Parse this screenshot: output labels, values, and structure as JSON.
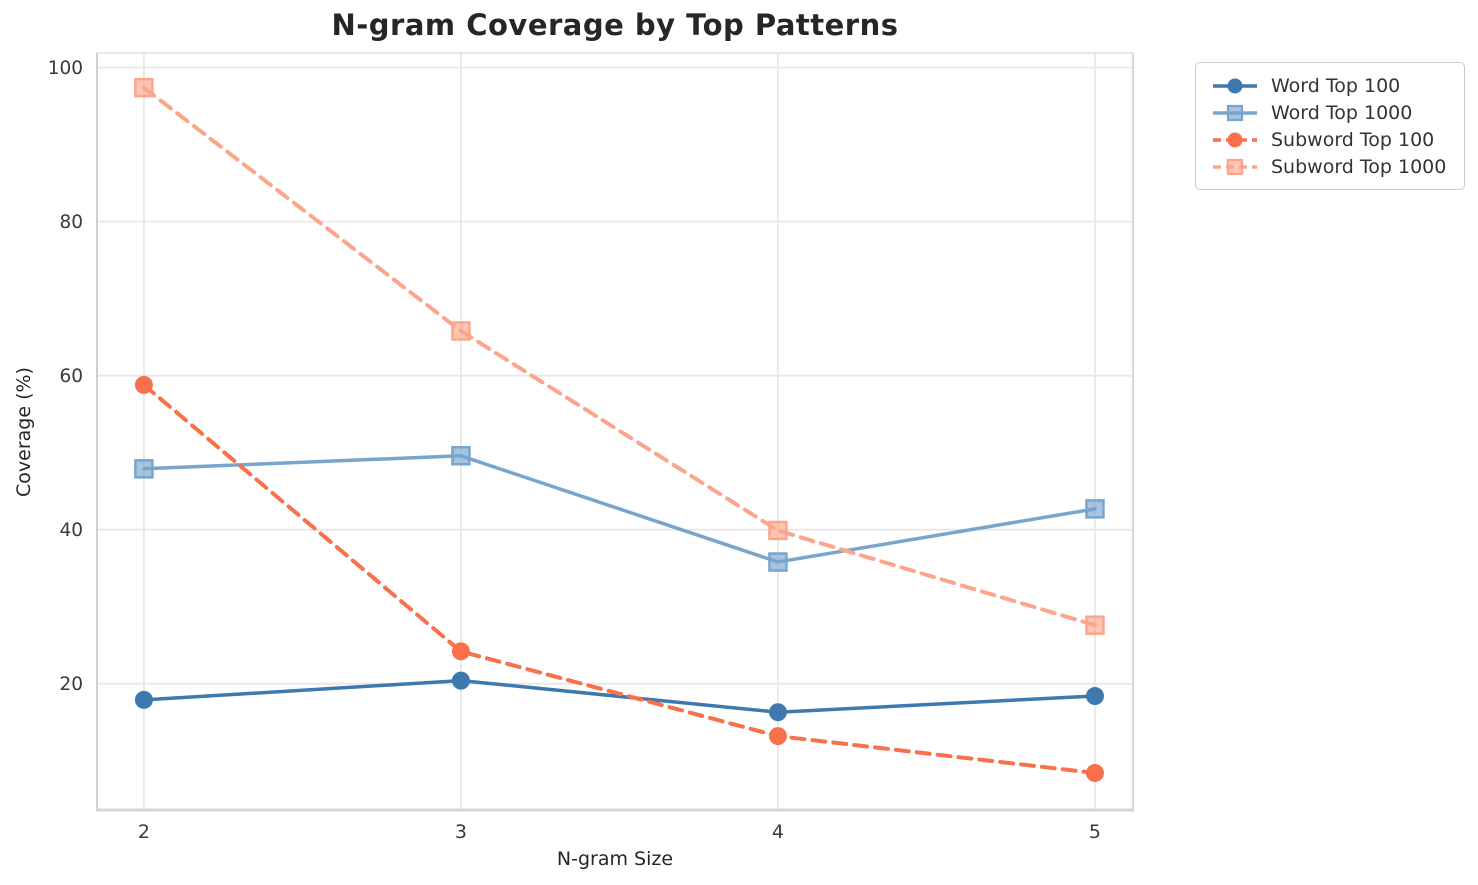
{
  "chart_data": {
    "type": "line",
    "title": "N-gram Coverage by Top Patterns",
    "xlabel": "N-gram Size",
    "ylabel": "Coverage (%)",
    "x": [
      2,
      3,
      4,
      5
    ],
    "x_tick_labels": [
      "2",
      "3",
      "4",
      "5"
    ],
    "y_ticks": [
      20,
      40,
      60,
      80,
      100
    ],
    "y_tick_labels": [
      "20",
      "40",
      "60",
      "80",
      "100"
    ],
    "xlim": [
      1.852,
      5.12
    ],
    "ylim": [
      3.6,
      101.9
    ],
    "grid": true,
    "grid_color": "#e8e8e8",
    "tick_label_color": "#3a3a3a",
    "legend_position": "outside-upper-right",
    "series": [
      {
        "name": "Word Top 100",
        "values": [
          17.9,
          20.4,
          16.3,
          18.4
        ],
        "color": "#3d78ae",
        "line_style": "solid",
        "marker": "circle"
      },
      {
        "name": "Word Top 1000",
        "values": [
          47.9,
          49.6,
          35.8,
          42.7
        ],
        "color": "#78a5cc",
        "line_style": "solid",
        "marker": "square"
      },
      {
        "name": "Subword Top 100",
        "values": [
          58.8,
          24.2,
          13.2,
          8.4
        ],
        "color": "#f8704c",
        "line_style": "dashed",
        "marker": "circle"
      },
      {
        "name": "Subword Top 1000",
        "values": [
          97.4,
          65.8,
          39.9,
          27.6
        ],
        "color": "#fba68c",
        "line_style": "dashed",
        "marker": "square"
      }
    ]
  }
}
